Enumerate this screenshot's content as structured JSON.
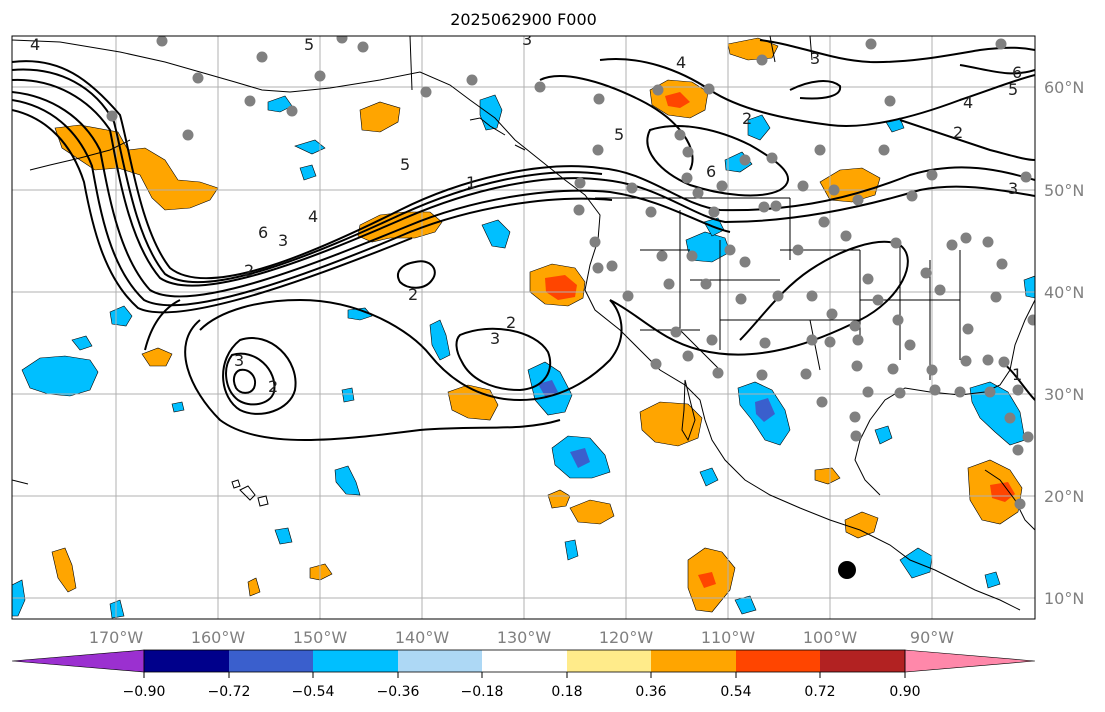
{
  "title": "2025062900 F000",
  "lat_labels": [
    "60°N",
    "50°N",
    "40°N",
    "30°N",
    "20°N",
    "10°N"
  ],
  "lon_labels": [
    "170°W",
    "160°W",
    "150°W",
    "140°W",
    "130°W",
    "120°W",
    "110°W",
    "100°W",
    "90°W"
  ],
  "colorbar": {
    "ticks": [
      "−0.90",
      "−0.72",
      "−0.54",
      "−0.36",
      "−0.18",
      "0.18",
      "0.36",
      "0.54",
      "0.72",
      "0.90"
    ],
    "colors": [
      "#9b30d0",
      "#00008b",
      "#3a5fcd",
      "#00bfff",
      "#add8f5",
      "#ffffff",
      "#ffeb8a",
      "#ffa500",
      "#ff4500",
      "#b22222",
      "#ff88aa"
    ]
  },
  "contour_labels": [
    "4",
    "5",
    "3",
    "4",
    "3",
    "6",
    "5",
    "4",
    "2",
    "2",
    "5",
    "6",
    "3",
    "5",
    "1",
    "4",
    "3",
    "6",
    "2",
    "2",
    "3",
    "2",
    "3",
    "2",
    "1"
  ],
  "colors": {
    "orange": "#ffa500",
    "red_orange": "#ff4500",
    "light_yellow": "#ffeb8a",
    "sky_blue": "#00bfff",
    "royal_blue": "#3a5fcd",
    "dot_gray": "#808080"
  }
}
